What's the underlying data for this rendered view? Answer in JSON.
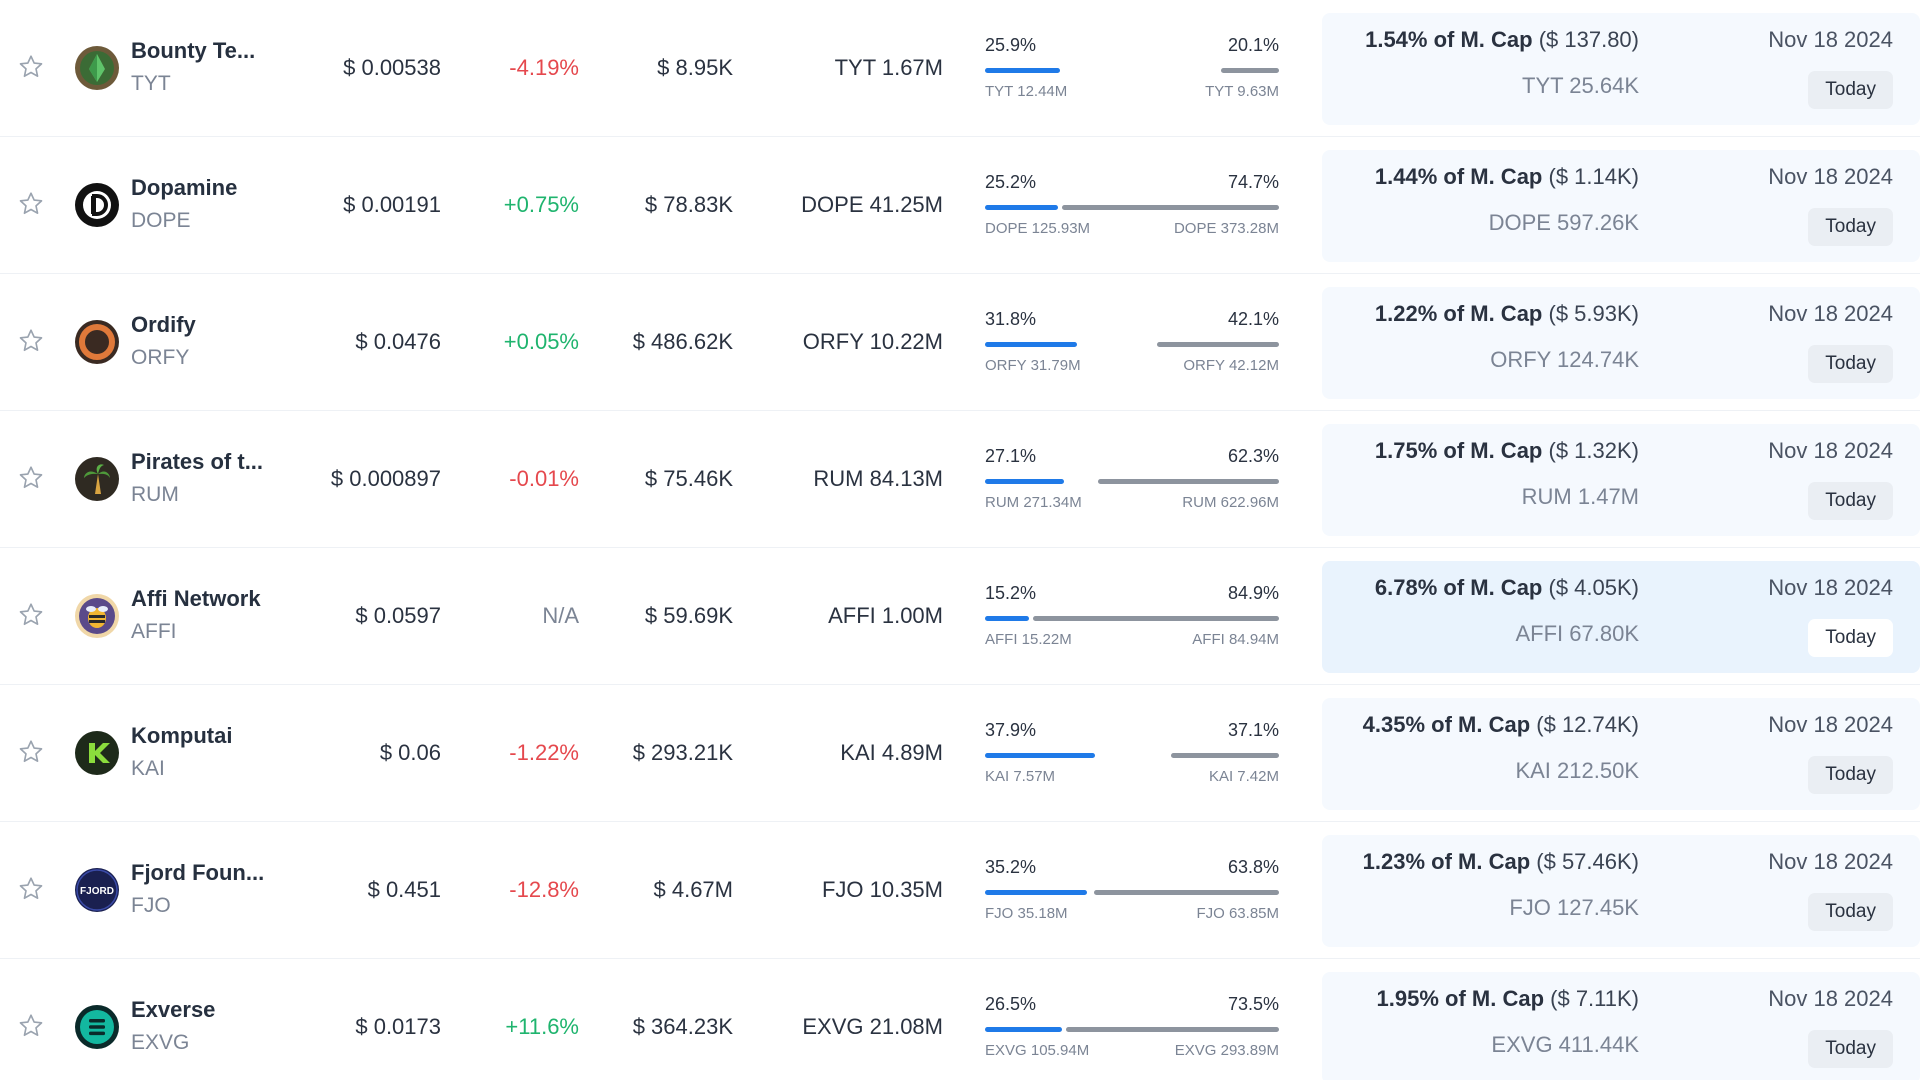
{
  "rows": [
    {
      "name": "Bounty Te...",
      "symbol": "TYT",
      "price": "$ 0.00538",
      "change": "-4.19%",
      "change_dir": "neg",
      "volume": "$ 8.95K",
      "supply": "TYT 1.67M",
      "dist_left_pct": "25.9%",
      "dist_right_pct": "20.1%",
      "dist_left_fill": 0.259,
      "dist_right_fill": 0.201,
      "dist_left_amt": "TYT 12.44M",
      "dist_right_amt": "TYT 9.63M",
      "unlock_pct": "1.54% of M. Cap",
      "unlock_usd": "($ 137.80)",
      "unlock_tokens": "TYT 25.64K",
      "unlock_date": "Nov 18 2024",
      "unlock_badge": "Today",
      "logo_icon": "green-gem-icon",
      "logo_color": "#3b6b35",
      "highlight": false
    },
    {
      "name": "Dopamine",
      "symbol": "DOPE",
      "price": "$ 0.00191",
      "change": "+0.75%",
      "change_dir": "pos",
      "volume": "$ 78.83K",
      "supply": "DOPE 41.25M",
      "dist_left_pct": "25.2%",
      "dist_right_pct": "74.7%",
      "dist_left_fill": 0.252,
      "dist_right_fill": 0.747,
      "dist_left_amt": "DOPE 125.93M",
      "dist_right_amt": "DOPE 373.28M",
      "unlock_pct": "1.44% of M. Cap",
      "unlock_usd": "($ 1.14K)",
      "unlock_tokens": "DOPE 597.26K",
      "unlock_date": "Nov 18 2024",
      "unlock_badge": "Today",
      "logo_icon": "d-letter-icon",
      "logo_color": "#111111",
      "highlight": false
    },
    {
      "name": "Ordify",
      "symbol": "ORFY",
      "price": "$ 0.0476",
      "change": "+0.05%",
      "change_dir": "pos",
      "volume": "$ 486.62K",
      "supply": "ORFY 10.22M",
      "dist_left_pct": "31.8%",
      "dist_right_pct": "42.1%",
      "dist_left_fill": 0.318,
      "dist_right_fill": 0.421,
      "dist_left_amt": "ORFY 31.79M",
      "dist_right_amt": "ORFY 42.12M",
      "unlock_pct": "1.22% of M. Cap",
      "unlock_usd": "($ 5.93K)",
      "unlock_tokens": "ORFY 124.74K",
      "unlock_date": "Nov 18 2024",
      "unlock_badge": "Today",
      "logo_icon": "orange-ring-icon",
      "logo_color": "#e0793a",
      "highlight": false
    },
    {
      "name": "Pirates of t...",
      "symbol": "RUM",
      "price": "$ 0.000897",
      "change": "-0.01%",
      "change_dir": "neg",
      "volume": "$ 75.46K",
      "supply": "RUM 84.13M",
      "dist_left_pct": "27.1%",
      "dist_right_pct": "62.3%",
      "dist_left_fill": 0.271,
      "dist_right_fill": 0.623,
      "dist_left_amt": "RUM 271.34M",
      "dist_right_amt": "RUM 622.96M",
      "unlock_pct": "1.75% of M. Cap",
      "unlock_usd": "($ 1.32K)",
      "unlock_tokens": "RUM 1.47M",
      "unlock_date": "Nov 18 2024",
      "unlock_badge": "Today",
      "logo_icon": "palm-tree-icon",
      "logo_color": "#2f2a22",
      "highlight": false
    },
    {
      "name": "Affi Network",
      "symbol": "AFFI",
      "price": "$ 0.0597",
      "change": "N/A",
      "change_dir": "na",
      "volume": "$ 59.69K",
      "supply": "AFFI 1.00M",
      "dist_left_pct": "15.2%",
      "dist_right_pct": "84.9%",
      "dist_left_fill": 0.152,
      "dist_right_fill": 0.849,
      "dist_left_amt": "AFFI 15.22M",
      "dist_right_amt": "AFFI 84.94M",
      "unlock_pct": "6.78% of M. Cap",
      "unlock_usd": "($ 4.05K)",
      "unlock_tokens": "AFFI 67.80K",
      "unlock_date": "Nov 18 2024",
      "unlock_badge": "Today",
      "logo_icon": "bee-icon",
      "logo_color": "#5a4a8a",
      "highlight": true
    },
    {
      "name": "Komputai",
      "symbol": "KAI",
      "price": "$ 0.06",
      "change": "-1.22%",
      "change_dir": "neg",
      "volume": "$ 293.21K",
      "supply": "KAI 4.89M",
      "dist_left_pct": "37.9%",
      "dist_right_pct": "37.1%",
      "dist_left_fill": 0.379,
      "dist_right_fill": 0.371,
      "dist_left_amt": "KAI 7.57M",
      "dist_right_amt": "KAI 7.42M",
      "unlock_pct": "4.35% of M. Cap",
      "unlock_usd": "($ 12.74K)",
      "unlock_tokens": "KAI 212.50K",
      "unlock_date": "Nov 18 2024",
      "unlock_badge": "Today",
      "logo_icon": "k-letter-icon",
      "logo_color": "#1e2a1a",
      "highlight": false
    },
    {
      "name": "Fjord Foun...",
      "symbol": "FJO",
      "price": "$ 0.451",
      "change": "-12.8%",
      "change_dir": "neg",
      "volume": "$ 4.67M",
      "supply": "FJO 10.35M",
      "dist_left_pct": "35.2%",
      "dist_right_pct": "63.8%",
      "dist_left_fill": 0.352,
      "dist_right_fill": 0.638,
      "dist_left_amt": "FJO 35.18M",
      "dist_right_amt": "FJO 63.85M",
      "unlock_pct": "1.23% of M. Cap",
      "unlock_usd": "($ 57.46K)",
      "unlock_tokens": "FJO 127.45K",
      "unlock_date": "Nov 18 2024",
      "unlock_badge": "Today",
      "logo_icon": "fjord-wordmark-icon",
      "logo_color": "#1a2050",
      "logo_text": "FJORD",
      "highlight": false
    },
    {
      "name": "Exverse",
      "symbol": "EXVG",
      "price": "$ 0.0173",
      "change": "+11.6%",
      "change_dir": "pos",
      "volume": "$ 364.23K",
      "supply": "EXVG 21.08M",
      "dist_left_pct": "26.5%",
      "dist_right_pct": "73.5%",
      "dist_left_fill": 0.265,
      "dist_right_fill": 0.735,
      "dist_left_amt": "EXVG 105.94M",
      "dist_right_amt": "EXVG 293.89M",
      "unlock_pct": "1.95% of M. Cap",
      "unlock_usd": "($ 7.11K)",
      "unlock_tokens": "EXVG 411.44K",
      "unlock_date": "Nov 18 2024",
      "unlock_badge": "Today",
      "logo_icon": "exverse-e-icon",
      "logo_color": "#13b8a0",
      "highlight": false
    }
  ]
}
